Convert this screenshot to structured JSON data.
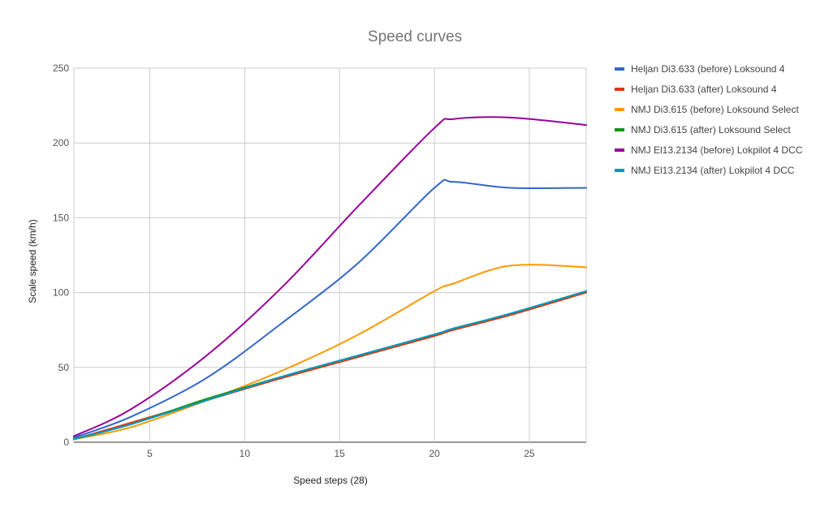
{
  "chart_data": {
    "type": "line",
    "title": "Speed curves",
    "xlabel": "Speed steps (28)",
    "ylabel": "Scale speed (km/h)",
    "xlim": [
      1,
      28
    ],
    "ylim": [
      0,
      250
    ],
    "x_ticks": [
      5,
      10,
      15,
      20,
      25
    ],
    "y_ticks": [
      0,
      50,
      100,
      150,
      200,
      250
    ],
    "grid": true,
    "legend_position": "right",
    "x": [
      1,
      4,
      8,
      12,
      16,
      20,
      21,
      24,
      28
    ],
    "series": [
      {
        "name": "Heljan Di3.633 (before) Loksound 4",
        "color": "#3366cc",
        "values": [
          3,
          17,
          43,
          80,
          120,
          170,
          174,
          170,
          170
        ]
      },
      {
        "name": "Heljan Di3.633 (after) Loksound 4",
        "color": "#dc3912",
        "values": [
          2,
          13,
          28,
          43,
          57,
          71,
          75,
          85,
          100
        ]
      },
      {
        "name": "NMJ Di3.615 (before) Loksound Select",
        "color": "#ff9900",
        "values": [
          2,
          10,
          28,
          48,
          72,
          101,
          106,
          118,
          117
        ]
      },
      {
        "name": "NMJ Di3.615 (after) Loksound Select",
        "color": "#109618",
        "values": [
          2,
          12,
          29,
          44,
          58,
          72,
          76,
          86,
          101
        ]
      },
      {
        "name": "NMJ El13.2134 (before) Lokpilot 4 DCC",
        "color": "#990099",
        "values": [
          4,
          22,
          58,
          104,
          158,
          210,
          216,
          217,
          212
        ]
      },
      {
        "name": "NMJ El13.2134 (after) Lokpilot 4 DCC",
        "color": "#0099c6",
        "values": [
          2,
          12,
          28,
          44,
          58,
          72,
          76,
          86,
          101
        ]
      }
    ]
  }
}
